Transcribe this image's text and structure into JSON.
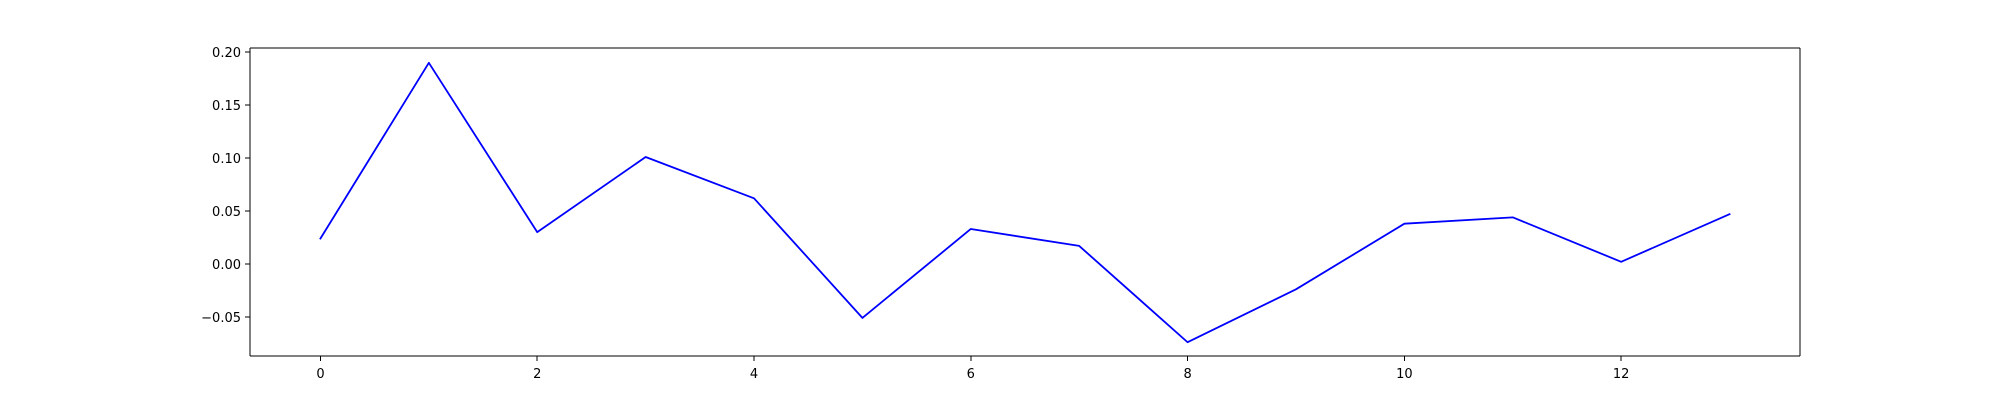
{
  "chart_data": {
    "type": "line",
    "title": "",
    "xlabel": "",
    "ylabel": "",
    "xlim": [
      -0.65,
      13.65
    ],
    "ylim": [
      -0.087,
      0.204
    ],
    "grid": false,
    "legend": "none",
    "x_ticks": [
      0,
      2,
      4,
      6,
      8,
      10,
      12
    ],
    "x_tick_labels": [
      "0",
      "2",
      "4",
      "6",
      "8",
      "10",
      "12"
    ],
    "y_ticks": [
      -0.05,
      0.0,
      0.05,
      0.1,
      0.15,
      0.2
    ],
    "y_tick_labels": [
      "−0.05",
      "0.00",
      "0.05",
      "0.10",
      "0.15",
      "0.20"
    ],
    "series": [
      {
        "color": "#0000ff",
        "x": [
          0,
          1,
          2,
          3,
          4,
          5,
          6,
          7,
          8,
          9,
          10,
          11,
          12,
          13
        ],
        "values": [
          0.024,
          0.19,
          0.03,
          0.101,
          0.062,
          -0.051,
          0.033,
          0.017,
          -0.074,
          -0.024,
          0.038,
          0.044,
          0.002,
          0.047
        ]
      }
    ]
  }
}
